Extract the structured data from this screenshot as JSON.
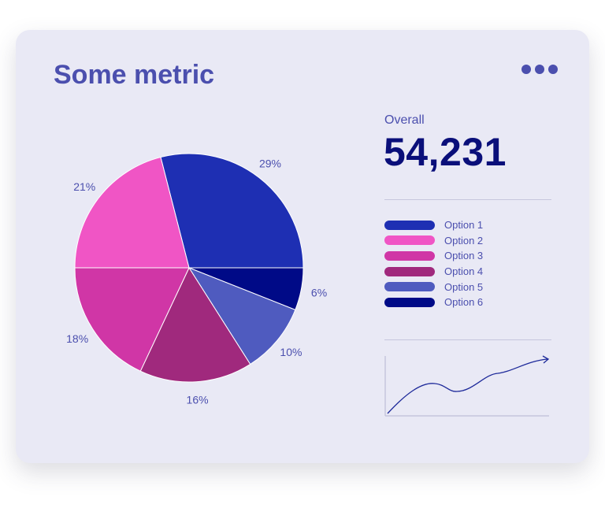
{
  "header": {
    "title": "Some metric",
    "more_icon": "ellipsis-horizontal-icon"
  },
  "summary": {
    "label": "Overall",
    "value": "54,231"
  },
  "chart_data": {
    "type": "pie",
    "categories": [
      "Option 1",
      "Option 6",
      "Option 5",
      "Option 4",
      "Option 3",
      "Option 2"
    ],
    "values": [
      29,
      6,
      10,
      16,
      18,
      21
    ],
    "labels": [
      "29%",
      "6%",
      "10%",
      "16%",
      "18%",
      "21%"
    ],
    "colors": [
      "#1e2fb3",
      "#000a87",
      "#4f5bbf",
      "#a0297d",
      "#d036a6",
      "#f055c5"
    ],
    "legend": [
      {
        "label": "Option 1",
        "color": "#1e2fb3"
      },
      {
        "label": "Option 2",
        "color": "#f055c5"
      },
      {
        "label": "Option 3",
        "color": "#d036a6"
      },
      {
        "label": "Option 4",
        "color": "#a0297d"
      },
      {
        "label": "Option 5",
        "color": "#4f5bbf"
      },
      {
        "label": "Option 6",
        "color": "#000a87"
      }
    ],
    "legend_placement": "right",
    "label_color": "#4b4fae"
  }
}
